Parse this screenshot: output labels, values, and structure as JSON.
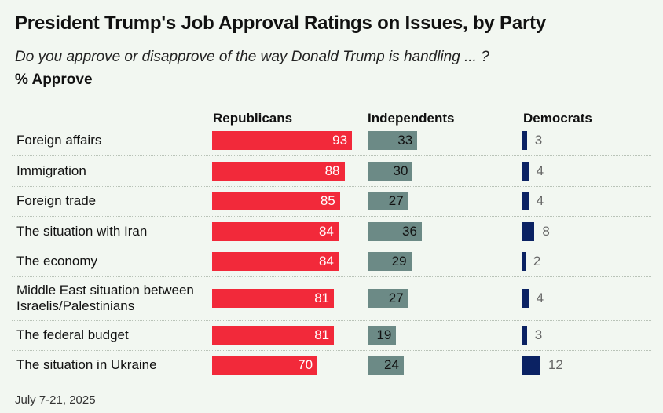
{
  "title": "President Trump's Job Approval Ratings on Issues, by Party",
  "subtitle": "Do you approve or disapprove of the way Donald Trump is handling ... ?",
  "measure_label": "% Approve",
  "footer": "July 7-21, 2025",
  "colors": {
    "background": "#f2f7f1",
    "republicans": "#f2293a",
    "independents": "#6c8a86",
    "democrats": "#0b2263"
  },
  "chart_data": {
    "type": "bar",
    "orientation": "horizontal",
    "categories": [
      "Foreign affairs",
      "Immigration",
      "Foreign trade",
      "The situation with Iran",
      "The economy",
      "Middle East situation between Israelis/Palestinians",
      "The federal budget",
      "The situation in Ukraine"
    ],
    "series": [
      {
        "name": "Republicans",
        "values": [
          93,
          88,
          85,
          84,
          84,
          81,
          81,
          70
        ]
      },
      {
        "name": "Independents",
        "values": [
          33,
          30,
          27,
          36,
          29,
          27,
          19,
          24
        ]
      },
      {
        "name": "Democrats",
        "values": [
          3,
          4,
          4,
          8,
          2,
          4,
          3,
          12
        ]
      }
    ],
    "ylim": [
      0,
      100
    ]
  }
}
